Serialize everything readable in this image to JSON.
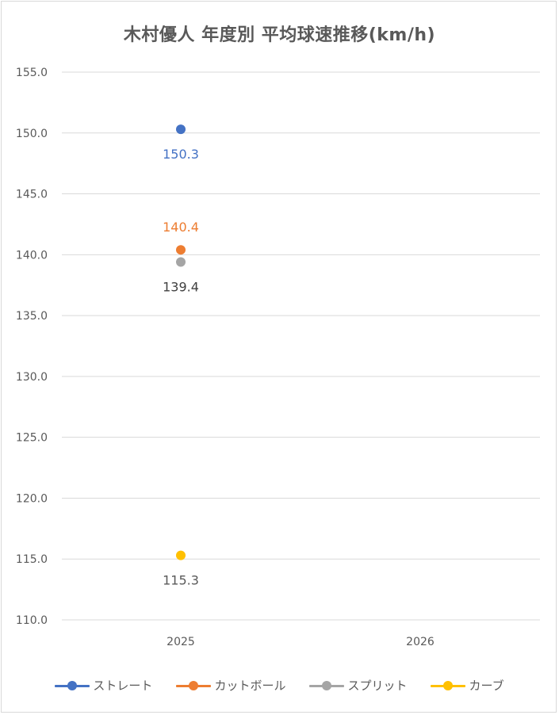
{
  "chart_data": {
    "type": "line",
    "title": "木村優人 年度別 平均球速推移(km/h)",
    "categories": [
      "2025",
      "2026"
    ],
    "ylim": [
      110.0,
      155.0
    ],
    "ytick_step": 5,
    "ytick_labels": [
      "155.0",
      "150.0",
      "145.0",
      "140.0",
      "135.0",
      "130.0",
      "125.0",
      "120.0",
      "115.0",
      "110.0"
    ],
    "grid": true,
    "legend_position": "bottom",
    "series": [
      {
        "name": "ストレート",
        "color": "#4472c4",
        "values": [
          150.3,
          null
        ],
        "labels": [
          "150.3",
          ""
        ],
        "label_pos": "below"
      },
      {
        "name": "カットボール",
        "color": "#ed7d31",
        "values": [
          140.4,
          null
        ],
        "labels": [
          "140.4",
          ""
        ],
        "label_pos": "above"
      },
      {
        "name": "スプリット",
        "color": "#a5a5a5",
        "values": [
          139.4,
          null
        ],
        "labels": [
          "139.4",
          ""
        ],
        "label_pos": "below"
      },
      {
        "name": "カーブ",
        "color": "#ffc000",
        "values": [
          115.3,
          null
        ],
        "labels": [
          "115.3",
          ""
        ],
        "label_pos": "below"
      }
    ],
    "data_label_colors": [
      "#4472c4",
      "#ed7d31",
      "#404040",
      "#595959"
    ]
  }
}
